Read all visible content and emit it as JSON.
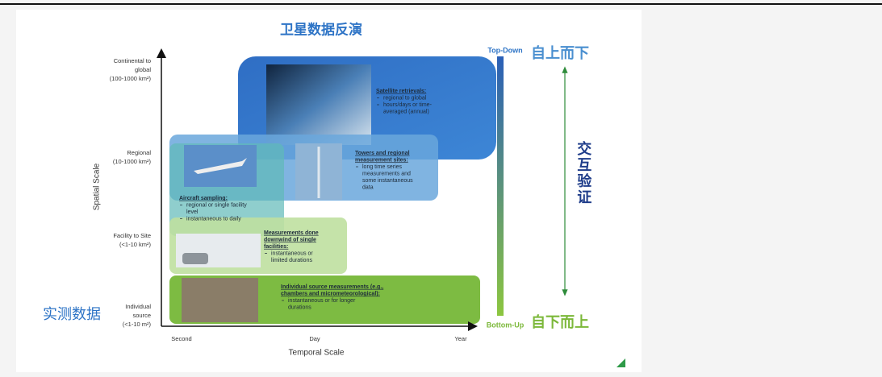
{
  "header": {
    "title": "卫星数据反演"
  },
  "axes": {
    "y_title": "Spatial Scale",
    "x_title": "Temporal Scale",
    "y_labels": [
      {
        "lines": [
          "Continental to",
          "global"
        ],
        "range": "(100-1000 km²)"
      },
      {
        "lines": [
          "Regional"
        ],
        "range": "(10-1000 km²)"
      },
      {
        "lines": [
          "Facility to Site"
        ],
        "range": "(<1-10 km²)"
      },
      {
        "lines": [
          "Individual",
          "source"
        ],
        "range": "(<1-10 m²)"
      }
    ],
    "x_labels": [
      "Second",
      "Day",
      "Year"
    ]
  },
  "side": {
    "left_label": "实测数据",
    "top": {
      "en": "Top-Down",
      "zh": "自上而下"
    },
    "bottom": {
      "en": "Bottom-Up",
      "zh": "自下而上"
    },
    "middle": "交互验证"
  },
  "boxes": [
    {
      "heading": [
        "Satellite retrievals:"
      ],
      "items": [
        [
          "regional to global"
        ],
        [
          "hours/days or time-",
          "averaged (annual)"
        ]
      ]
    },
    {
      "heading": [
        "Towers and regional",
        "measurement sites:"
      ],
      "items": [
        [
          "long time series",
          "measurements and",
          "some instantaneous",
          "data"
        ]
      ]
    },
    {
      "heading": [
        "Aircraft sampling:"
      ],
      "items": [
        [
          "regional or single facility",
          "level"
        ],
        [
          "instantaneous to daily"
        ]
      ]
    },
    {
      "heading": [
        "Measurements done",
        "downwind of single",
        "facilities:"
      ],
      "items": [
        [
          "instantaneous or",
          "limited durations"
        ]
      ]
    },
    {
      "heading": [
        "Individual source measurements (e.g.,",
        "chambers and micrometeorological):"
      ],
      "items": [
        [
          "instantaneous or for longer",
          "durations"
        ]
      ]
    }
  ]
}
